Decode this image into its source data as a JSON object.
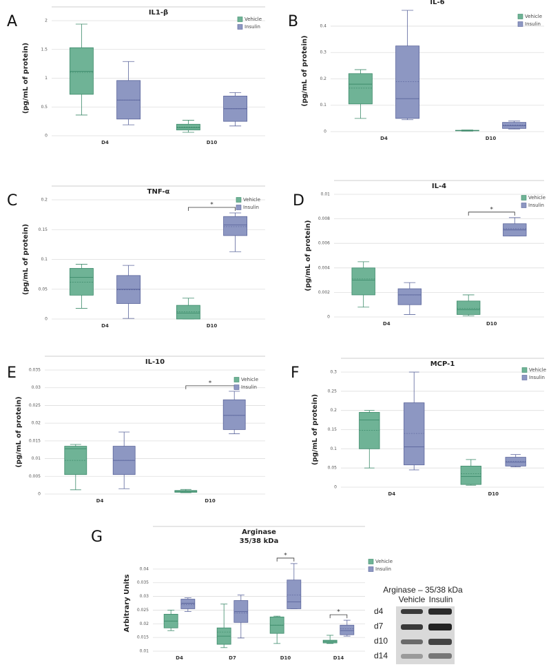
{
  "chart_data": [
    {
      "type": "box",
      "panel": "A",
      "title": "IL1-β",
      "ylabel": "(pg/mL of protein)",
      "categories": [
        "D4",
        "D10"
      ],
      "ylim": [
        0,
        2
      ],
      "yticks": [
        0,
        0.5,
        1,
        1.5,
        2
      ],
      "grid": true,
      "significance": [
        null,
        null
      ],
      "series": [
        {
          "name": "Vehicle",
          "color": "#6fb396",
          "min": [
            0.36,
            0.06
          ],
          "q1": [
            0.72,
            0.1
          ],
          "median": [
            1.12,
            0.14
          ],
          "q3": [
            1.53,
            0.2
          ],
          "max": [
            1.94,
            0.27
          ],
          "mean": [
            1.1,
            0.15
          ]
        },
        {
          "name": "Insulin",
          "color": "#8d97c2",
          "min": [
            0.19,
            0.17
          ],
          "q1": [
            0.29,
            0.25
          ],
          "median": [
            0.62,
            0.47
          ],
          "q3": [
            0.96,
            0.69
          ],
          "max": [
            1.29,
            0.75
          ],
          "mean": [
            0.62,
            0.47
          ]
        }
      ]
    },
    {
      "type": "box",
      "panel": "B",
      "title": "IL-6",
      "ylabel": "(pg/mL of protein)",
      "categories": [
        "D4",
        "D10"
      ],
      "ylim": [
        0,
        0.46
      ],
      "yticks": [
        0,
        0.1,
        0.2,
        0.3,
        0.4
      ],
      "grid": true,
      "significance": [
        null,
        null
      ],
      "series": [
        {
          "name": "Vehicle",
          "color": "#6fb396",
          "min": [
            0.05,
            0.002
          ],
          "q1": [
            0.105,
            0.003
          ],
          "median": [
            0.18,
            0.004
          ],
          "q3": [
            0.22,
            0.005
          ],
          "max": [
            0.235,
            0.006
          ],
          "mean": [
            0.165,
            0.004
          ]
        },
        {
          "name": "Insulin",
          "color": "#8d97c2",
          "min": [
            0.045,
            0.01
          ],
          "q1": [
            0.05,
            0.012
          ],
          "median": [
            0.125,
            0.022
          ],
          "q3": [
            0.325,
            0.035
          ],
          "max": [
            0.46,
            0.04
          ],
          "mean": [
            0.19,
            0.025
          ]
        }
      ]
    },
    {
      "type": "box",
      "panel": "C",
      "title": "TNF-α",
      "ylabel": "(pg/mL of protein)",
      "categories": [
        "D4",
        "D10"
      ],
      "ylim": [
        0,
        0.2
      ],
      "yticks": [
        0,
        0.05,
        0.1,
        0.15,
        0.2
      ],
      "grid": true,
      "significance": [
        null,
        "*"
      ],
      "series": [
        {
          "name": "Vehicle",
          "color": "#6fb396",
          "min": [
            0.018,
            0
          ],
          "q1": [
            0.04,
            0
          ],
          "median": [
            0.07,
            0.01
          ],
          "q3": [
            0.085,
            0.023
          ],
          "max": [
            0.092,
            0.035
          ],
          "mean": [
            0.062,
            0.012
          ]
        },
        {
          "name": "Insulin",
          "color": "#8d97c2",
          "min": [
            0.001,
            0.113
          ],
          "q1": [
            0.026,
            0.14
          ],
          "median": [
            0.05,
            0.158
          ],
          "q3": [
            0.073,
            0.172
          ],
          "max": [
            0.09,
            0.178
          ],
          "mean": [
            0.049,
            0.155
          ]
        }
      ]
    },
    {
      "type": "box",
      "panel": "D",
      "title": "IL-4",
      "ylabel": "(pg/mL of protein)",
      "categories": [
        "D4",
        "D10"
      ],
      "ylim": [
        0,
        0.01
      ],
      "yticks": [
        0,
        0.002,
        0.004,
        0.006,
        0.008,
        0.01
      ],
      "grid": true,
      "significance": [
        null,
        "*"
      ],
      "series": [
        {
          "name": "Vehicle",
          "color": "#6fb396",
          "min": [
            0.0008,
            0.0001
          ],
          "q1": [
            0.0018,
            0.0002
          ],
          "median": [
            0.003,
            0.0006
          ],
          "q3": [
            0.004,
            0.0013
          ],
          "max": [
            0.0045,
            0.0018
          ],
          "mean": [
            0.0031,
            0.0007
          ]
        },
        {
          "name": "Insulin",
          "color": "#8d97c2",
          "min": [
            0.0002,
            0.0066
          ],
          "q1": [
            0.001,
            0.0066
          ],
          "median": [
            0.0018,
            0.0071
          ],
          "q3": [
            0.0023,
            0.0076
          ],
          "max": [
            0.0028,
            0.0081
          ],
          "mean": [
            0.0018,
            0.0072
          ]
        }
      ]
    },
    {
      "type": "box",
      "panel": "E",
      "title": "IL-10",
      "ylabel": "(pg/mL of protein)",
      "categories": [
        "D4",
        "D10"
      ],
      "ylim": [
        0,
        0.035
      ],
      "yticks": [
        0,
        0.005,
        0.01,
        0.015,
        0.02,
        0.025,
        0.03,
        0.035
      ],
      "grid": true,
      "significance": [
        null,
        "*"
      ],
      "series": [
        {
          "name": "Vehicle",
          "color": "#6fb396",
          "min": [
            0.0012,
            0.0004
          ],
          "q1": [
            0.0055,
            0.0005
          ],
          "median": [
            0.0128,
            0.0008
          ],
          "q3": [
            0.0135,
            0.001
          ],
          "max": [
            0.014,
            0.0013
          ],
          "mean": [
            0.0095,
            0.0008
          ]
        },
        {
          "name": "Insulin",
          "color": "#8d97c2",
          "min": [
            0.0015,
            0.017
          ],
          "q1": [
            0.0055,
            0.0182
          ],
          "median": [
            0.0095,
            0.0222
          ],
          "q3": [
            0.0135,
            0.0266
          ],
          "max": [
            0.0175,
            0.029
          ],
          "mean": [
            0.0095,
            0.0222
          ]
        }
      ]
    },
    {
      "type": "box",
      "panel": "F",
      "title": "MCP-1",
      "ylabel": "(pg/mL of protein)",
      "categories": [
        "D4",
        "D10"
      ],
      "ylim": [
        0,
        0.3
      ],
      "yticks": [
        0,
        0.05,
        0.1,
        0.15,
        0.2,
        0.25,
        0.3
      ],
      "grid": true,
      "significance": [
        null,
        null
      ],
      "series": [
        {
          "name": "Vehicle",
          "color": "#6fb396",
          "min": [
            0.05,
            0.005
          ],
          "q1": [
            0.1,
            0.007
          ],
          "median": [
            0.175,
            0.028
          ],
          "q3": [
            0.195,
            0.055
          ],
          "max": [
            0.2,
            0.072
          ],
          "mean": [
            0.148,
            0.035
          ]
        },
        {
          "name": "Insulin",
          "color": "#8d97c2",
          "min": [
            0.045,
            0.053
          ],
          "q1": [
            0.058,
            0.055
          ],
          "median": [
            0.105,
            0.065
          ],
          "q3": [
            0.22,
            0.078
          ],
          "max": [
            0.3,
            0.085
          ],
          "mean": [
            0.14,
            0.067
          ]
        }
      ]
    },
    {
      "type": "box",
      "panel": "G",
      "title": "Arginase",
      "subtitle": "35/38 kDa",
      "ylabel": "Arbitrary Units",
      "categories": [
        "D4",
        "D7",
        "D10",
        "D14"
      ],
      "ylim": [
        0.01,
        0.045
      ],
      "yticks": [
        0.01,
        0.015,
        0.02,
        0.025,
        0.03,
        0.035,
        0.04
      ],
      "grid": true,
      "significance": [
        null,
        null,
        "*",
        "*"
      ],
      "series": [
        {
          "name": "Vehicle",
          "color": "#6fb396",
          "min": [
            0.0175,
            0.0113,
            0.0128,
            0.0128
          ],
          "q1": [
            0.0185,
            0.0125,
            0.0165,
            0.013
          ],
          "median": [
            0.021,
            0.0155,
            0.0195,
            0.0135
          ],
          "q3": [
            0.0235,
            0.0185,
            0.0225,
            0.014
          ],
          "max": [
            0.025,
            0.0272,
            0.0228,
            0.0158
          ],
          "mean": [
            0.021,
            0.017,
            0.0195,
            0.0135
          ]
        },
        {
          "name": "Insulin",
          "color": "#8d97c2",
          "min": [
            0.0245,
            0.0148,
            0.0255,
            0.0155
          ],
          "q1": [
            0.0255,
            0.0205,
            0.0255,
            0.016
          ],
          "median": [
            0.0275,
            0.0245,
            0.028,
            0.0175
          ],
          "q3": [
            0.029,
            0.0285,
            0.036,
            0.0195
          ],
          "max": [
            0.0295,
            0.0305,
            0.042,
            0.0213
          ],
          "mean": [
            0.027,
            0.024,
            0.0305,
            0.0182
          ]
        }
      ]
    }
  ],
  "blot": {
    "title": "Arginase – 35/38 kDa",
    "columns": [
      "Vehicle",
      "Insulin"
    ],
    "rows": [
      "d4",
      "d7",
      "d10",
      "d14"
    ]
  }
}
